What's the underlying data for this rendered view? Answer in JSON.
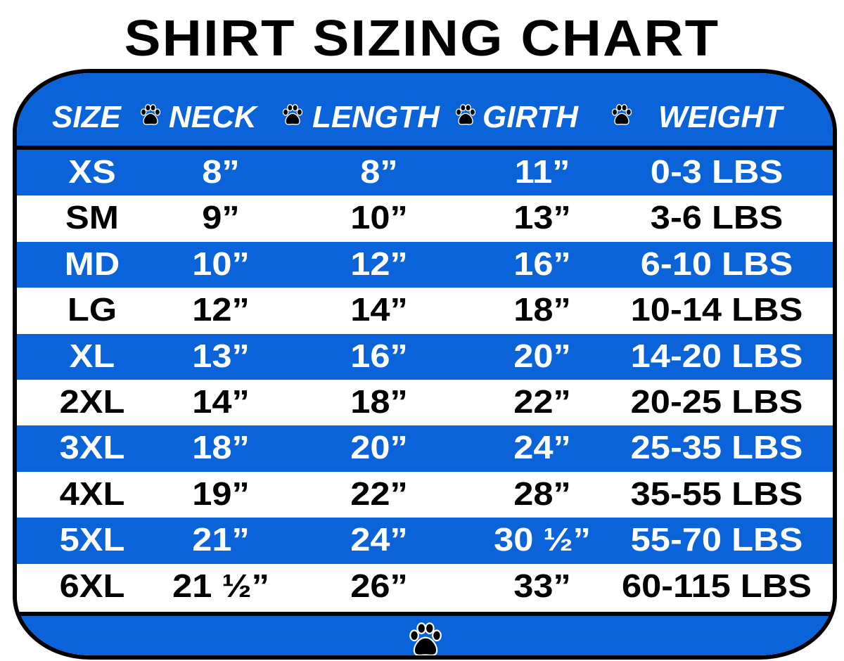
{
  "title": "SHIRT SIZING CHART",
  "colors": {
    "blue": "#0b63d9",
    "white": "#ffffff",
    "border": "#000000"
  },
  "chart_data": {
    "type": "table",
    "columns": [
      "SIZE",
      "NECK",
      "LENGTH",
      "GIRTH",
      "WEIGHT"
    ],
    "rows": [
      [
        "XS",
        "8”",
        "8”",
        "11”",
        "0-3 LBS"
      ],
      [
        "SM",
        "9”",
        "10”",
        "13”",
        "3-6 LBS"
      ],
      [
        "MD",
        "10”",
        "12”",
        "16”",
        "6-10 LBS"
      ],
      [
        "LG",
        "12”",
        "14”",
        "18”",
        "10-14 LBS"
      ],
      [
        "XL",
        "13”",
        "16”",
        "20”",
        "14-20 LBS"
      ],
      [
        "2XL",
        "14”",
        "18”",
        "22”",
        "20-25 LBS"
      ],
      [
        "3XL",
        "18”",
        "20”",
        "24”",
        "25-35 LBS"
      ],
      [
        "4XL",
        "19”",
        "22”",
        "28”",
        "35-55 LBS"
      ],
      [
        "5XL",
        "21”",
        "24”",
        "30 ½”",
        "55-70 LBS"
      ],
      [
        "6XL",
        "21 ½”",
        "26”",
        "33”",
        "60-115 LBS"
      ]
    ]
  },
  "icons": {
    "separator": "paw-print-icon",
    "footer": "paw-print-icon"
  }
}
